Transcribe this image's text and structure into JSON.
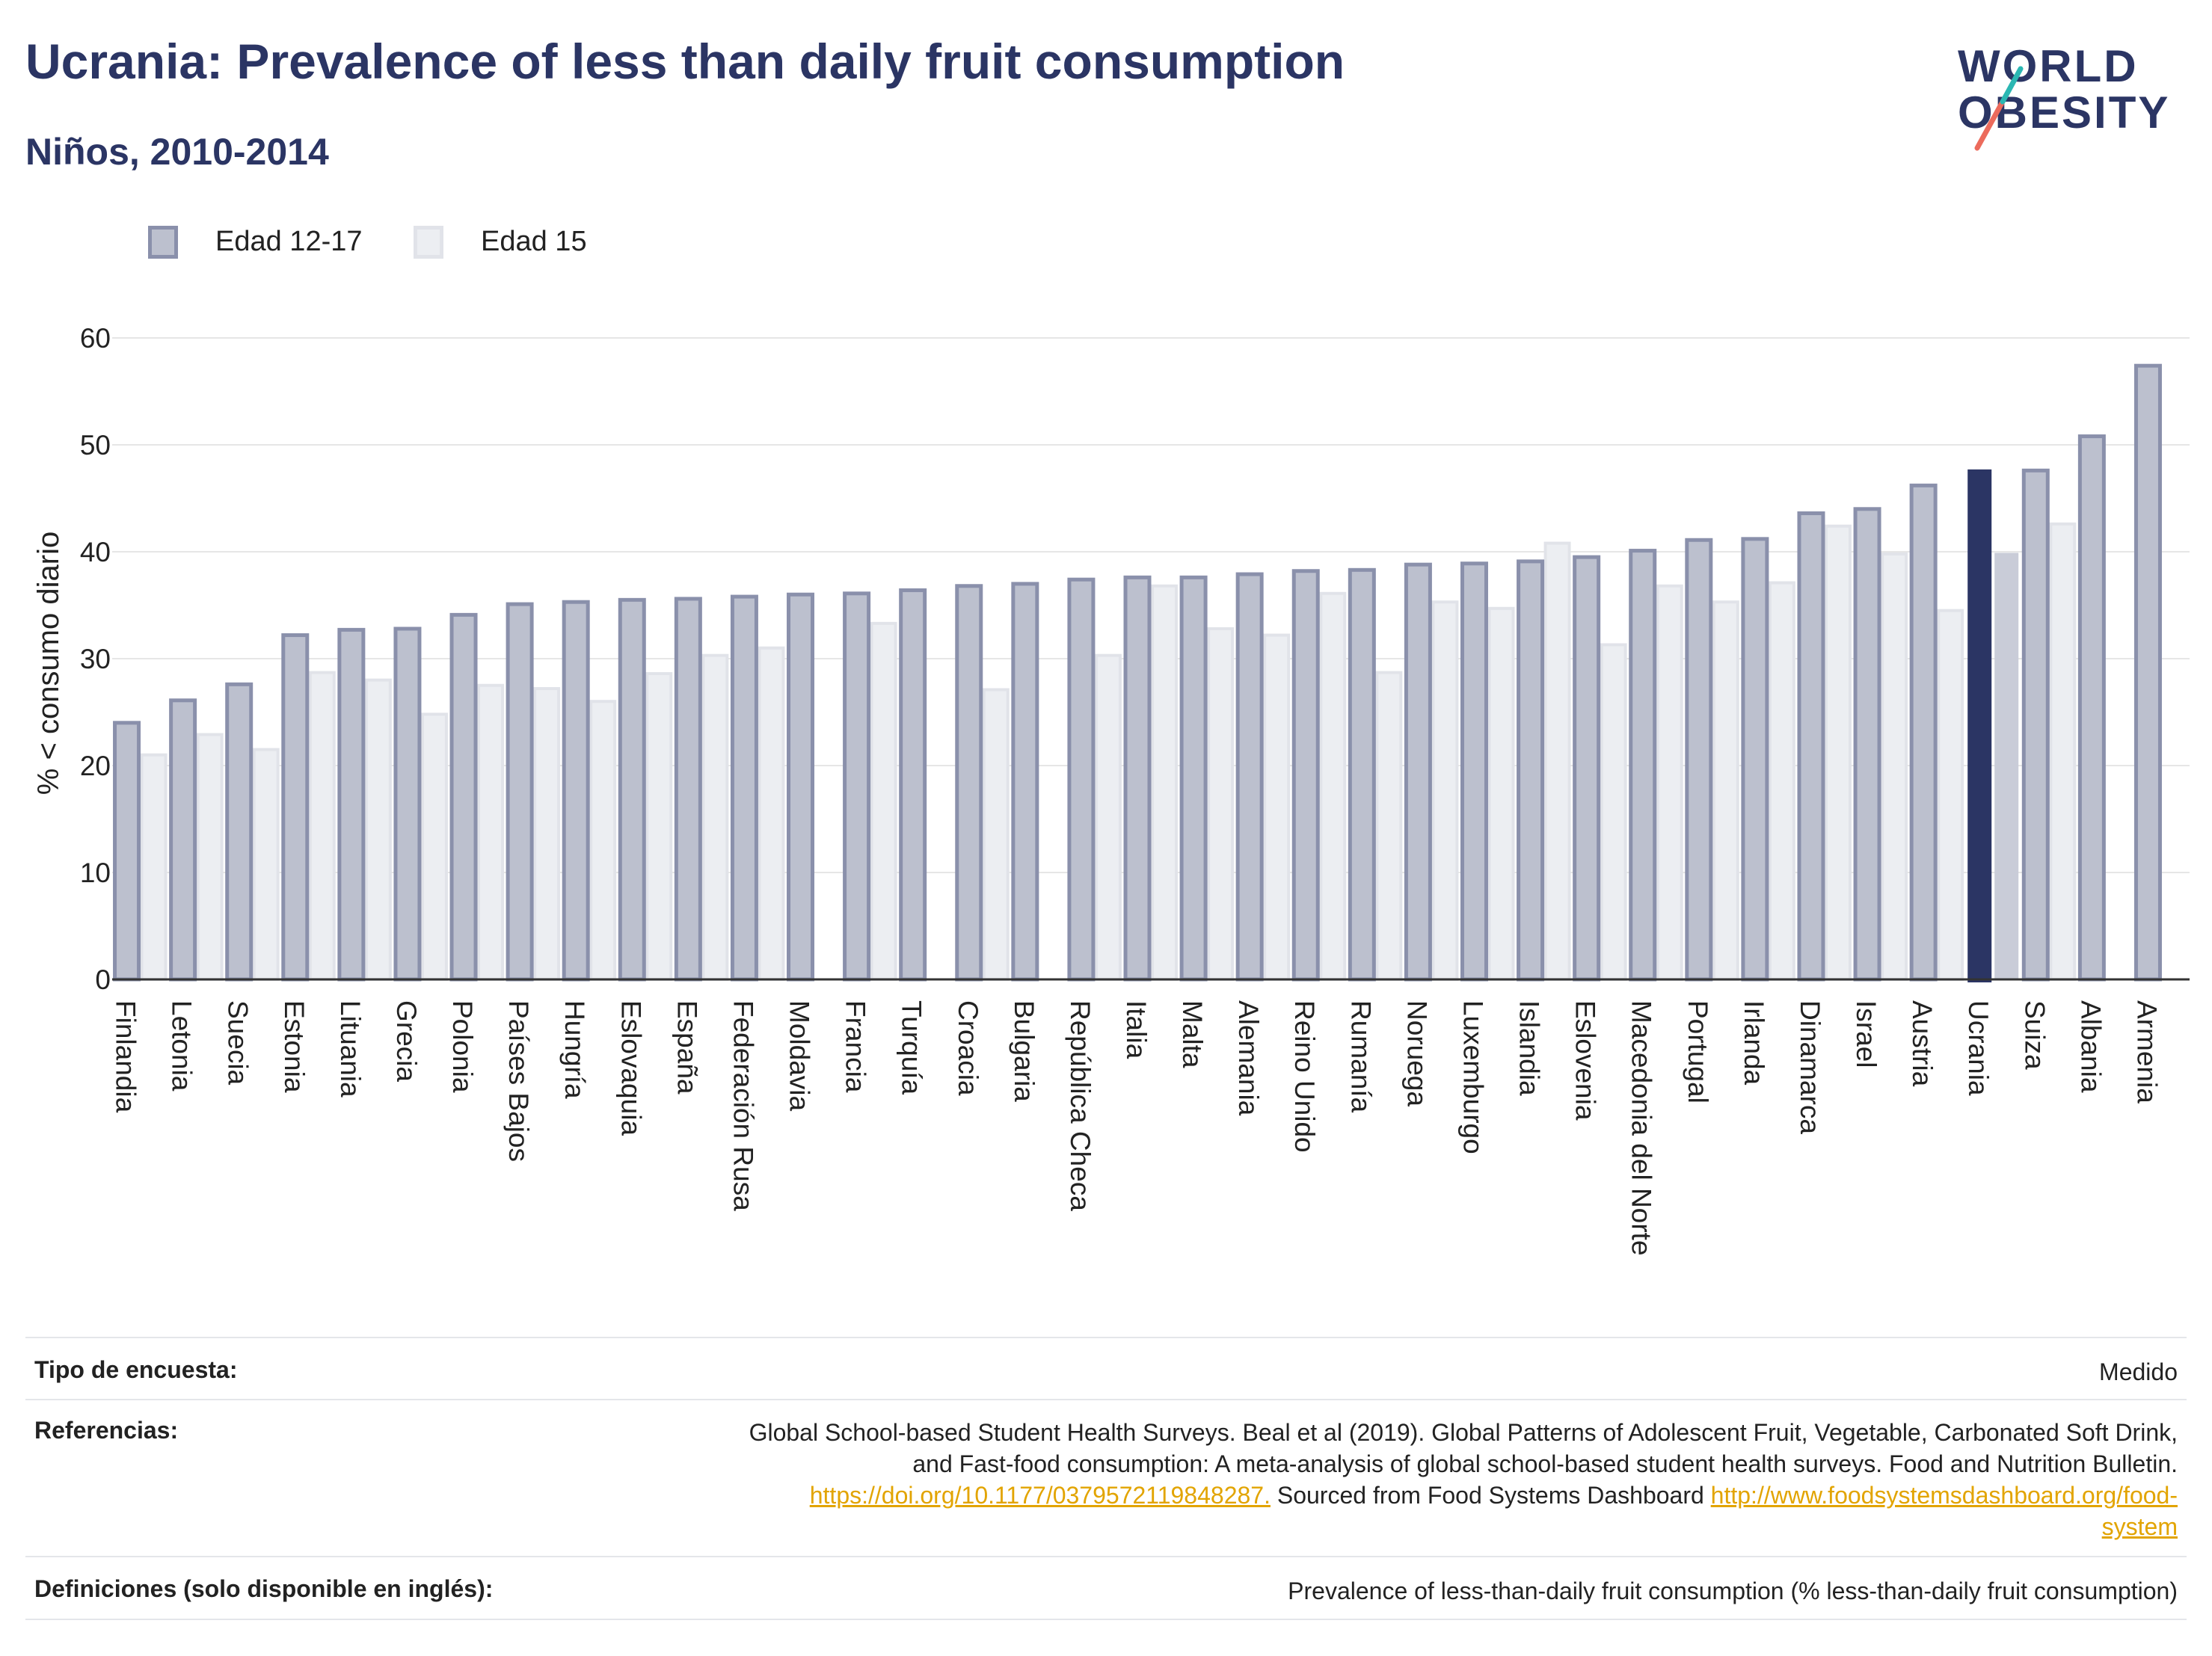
{
  "header": {
    "title": "Ucrania: Prevalence of less than daily fruit consumption",
    "subtitle": "Niños, 2010-2014"
  },
  "logo": {
    "line1": "WORLD",
    "line2": "OBESITY"
  },
  "legend": {
    "items": [
      {
        "label": "Edad 12-17"
      },
      {
        "label": "Edad 15"
      }
    ]
  },
  "colors": {
    "primary_fill": "#bcc0ce",
    "primary_border": "#8a90ab",
    "secondary_fill": "#eceef2",
    "secondary_border": "#e1e3e9",
    "highlight": "#2b3564",
    "highlight_secondary": "#c9ccd8",
    "title": "#2b3564",
    "link": "#e2a400",
    "grid": "#e6e6e6"
  },
  "chart_data": {
    "type": "bar",
    "ylabel": "% < consumo diario",
    "xlabel": "",
    "ylim": [
      0,
      60
    ],
    "yticks": [
      0,
      10,
      20,
      30,
      40,
      50,
      60
    ],
    "grid": true,
    "legend_position": "top-left",
    "highlight_category": "Ucrania",
    "categories": [
      "Finlandia",
      "Letonia",
      "Suecia",
      "Estonia",
      "Lituania",
      "Grecia",
      "Polonia",
      "Países Bajos",
      "Hungría",
      "Eslovaquia",
      "España",
      "Federación Rusa",
      "Moldavia",
      "Francia",
      "Turquía",
      "Croacia",
      "Bulgaria",
      "República Checa",
      "Italia",
      "Malta",
      "Alemania",
      "Reino Unido",
      "Rumanía",
      "Noruega",
      "Luxemburgo",
      "Islandia",
      "Eslovenia",
      "Macedonia del Norte",
      "Portugal",
      "Irlanda",
      "Dinamarca",
      "Israel",
      "Austria",
      "Ucrania",
      "Suiza",
      "Albania",
      "Armenia"
    ],
    "series": [
      {
        "name": "Edad 12-17",
        "values": [
          24.0,
          26.1,
          27.6,
          32.2,
          32.7,
          32.8,
          34.1,
          35.1,
          35.3,
          35.5,
          35.6,
          35.8,
          36.0,
          36.1,
          36.4,
          36.8,
          37.0,
          37.4,
          37.6,
          37.6,
          37.9,
          38.2,
          38.3,
          38.8,
          38.9,
          39.1,
          39.5,
          40.1,
          41.1,
          41.2,
          43.6,
          44.0,
          46.2,
          47.7,
          47.6,
          50.8,
          57.4
        ]
      },
      {
        "name": "Edad 15",
        "values": [
          21.0,
          22.9,
          21.5,
          28.7,
          28.0,
          24.8,
          27.5,
          27.2,
          26.0,
          28.6,
          30.3,
          31.0,
          null,
          33.3,
          null,
          27.1,
          null,
          30.3,
          36.8,
          32.8,
          32.2,
          36.1,
          28.7,
          35.3,
          34.7,
          40.8,
          31.3,
          36.8,
          35.3,
          37.1,
          42.4,
          39.8,
          34.5,
          39.9,
          42.6,
          null,
          null
        ]
      }
    ]
  },
  "table": {
    "survey_type": {
      "label": "Tipo de encuesta:",
      "value": "Medido"
    },
    "references": {
      "label": "Referencias:",
      "line1": "Global School-based Student Health Surveys. Beal et al (2019). Global Patterns of Adolescent Fruit, Vegetable, Carbonated Soft Drink,",
      "line2": "and Fast-food consumption: A meta-analysis of global school-based student health surveys. Food and Nutrition Bulletin.",
      "doi_link": "https://doi.org/10.1177/0379572119848287.",
      "sourced_text": " Sourced from Food Systems Dashboard ",
      "fsd_link_part1": "http://www.foodsystemsdashboard.org/food-",
      "fsd_link_part2": "system"
    },
    "definitions": {
      "label": "Definiciones (solo disponible en inglés):",
      "value": "Prevalence of less-than-daily fruit consumption (% less-than-daily fruit consumption)"
    }
  }
}
